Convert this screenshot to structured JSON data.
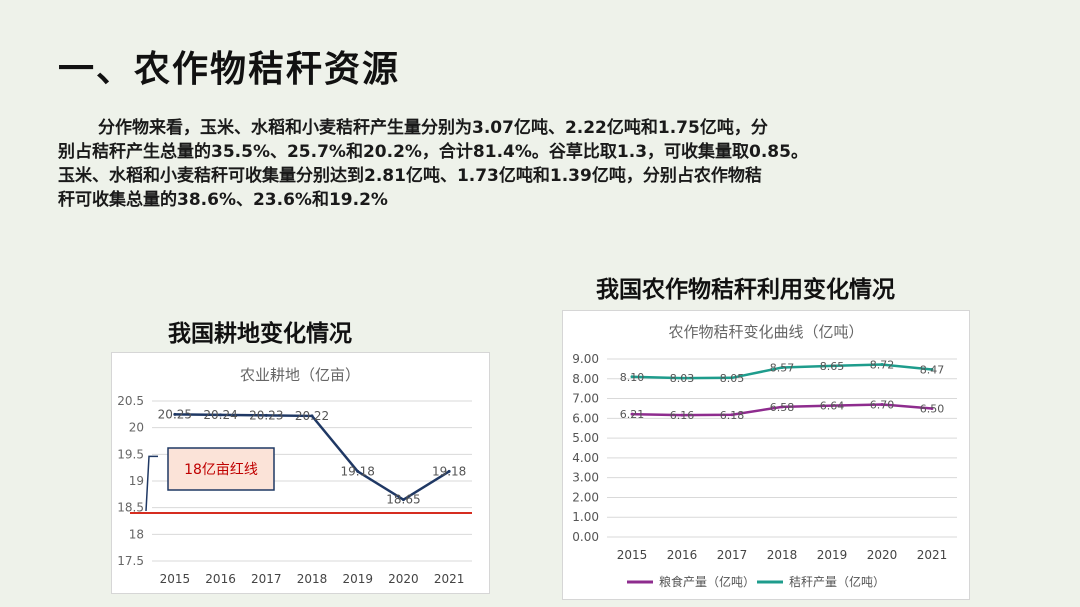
{
  "header": {
    "title": "一、农作物秸秆资源"
  },
  "paragraph": {
    "lines": [
      "分作物来看，玉米、水稻和小麦秸秆产生量分别为3.07亿吨、2.22亿吨和1.75亿吨，分",
      "别占秸秆产生总量的35.5%、25.7%和20.2%，合计81.4%。谷草比取1.3，可收集量取0.85。",
      "玉米、水稻和小麦秸秆可收集量分别达到2.81亿吨、1.73亿吨和1.39亿吨，分别占农作物秸",
      "秆可收集总量的38.6%、23.6%和19.2%"
    ]
  },
  "left_section_title": "我国耕地变化情况",
  "right_section_title": "我国农作物秸秆利用变化情况",
  "chart_data": [
    {
      "type": "line",
      "title": "农业耕地（亿亩）",
      "categories": [
        "2015",
        "2016",
        "2017",
        "2018",
        "2019",
        "2020",
        "2021"
      ],
      "series": [
        {
          "values": [
            20.25,
            20.24,
            20.23,
            20.22,
            19.18,
            18.65,
            19.18
          ],
          "color": "#1f3864"
        }
      ],
      "data_labels": [
        "20.25",
        "20.24",
        "20.23",
        "20.22",
        "19.18",
        "18.65",
        "19.18"
      ],
      "ylim": [
        17.5,
        20.5
      ],
      "yticks": [
        "17.5",
        "18",
        "18.5",
        "19",
        "19.5",
        "20",
        "20.5"
      ],
      "grid": true,
      "reference_line": {
        "value": 18.4,
        "color": "#d62d20"
      },
      "annotation": {
        "text": "18亿亩红线",
        "bg": "#fbe3d8",
        "border": "#1f3864",
        "text_color": "#c00000"
      }
    },
    {
      "type": "line",
      "title": "农作物秸秆变化曲线（亿吨）",
      "categories": [
        "2015",
        "2016",
        "2017",
        "2018",
        "2019",
        "2020",
        "2021"
      ],
      "series": [
        {
          "name": "粮食产量（亿吨）",
          "values": [
            6.21,
            6.16,
            6.18,
            6.58,
            6.64,
            6.7,
            6.5
          ],
          "labels": [
            "6.21",
            "6.16",
            "6.18",
            "6.58",
            "6.64",
            "6.70",
            "6.50"
          ],
          "color": "#8e2c8e"
        },
        {
          "name": "秸秆产量（亿吨）",
          "values": [
            8.1,
            8.03,
            8.05,
            8.57,
            8.65,
            8.72,
            8.47
          ],
          "labels": [
            "8.10",
            "8.03",
            "8.05",
            "8.57",
            "8.65",
            "8.72",
            "8.47"
          ],
          "color": "#1e9c8c"
        }
      ],
      "ylim": [
        0,
        9
      ],
      "yticks": [
        "0.00",
        "1.00",
        "2.00",
        "3.00",
        "4.00",
        "5.00",
        "6.00",
        "7.00",
        "8.00",
        "9.00"
      ],
      "grid": true,
      "legend": "bottom"
    }
  ]
}
